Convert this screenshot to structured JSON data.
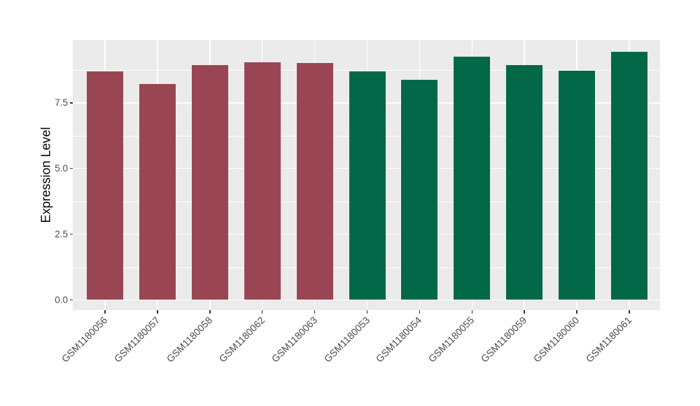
{
  "chart_data": {
    "type": "bar",
    "title": "",
    "xlabel": "",
    "ylabel": "Expression Level",
    "categories": [
      "GSM1180056",
      "GSM1180057",
      "GSM1180058",
      "GSM1180062",
      "GSM1180063",
      "GSM1180053",
      "GSM1180054",
      "GSM1180055",
      "GSM1180059",
      "GSM1180060",
      "GSM1180061"
    ],
    "values": [
      8.7,
      8.22,
      8.93,
      9.04,
      9.01,
      8.68,
      8.38,
      9.25,
      8.94,
      8.73,
      9.45
    ],
    "bar_colors": [
      "#9A4553",
      "#9A4553",
      "#9A4553",
      "#9A4553",
      "#9A4553",
      "#026847",
      "#026847",
      "#026847",
      "#026847",
      "#026847",
      "#026847"
    ],
    "color_groups": [
      {
        "color": "#9A4553",
        "categories": [
          "GSM1180056",
          "GSM1180057",
          "GSM1180058",
          "GSM1180062",
          "GSM1180063"
        ]
      },
      {
        "color": "#026847",
        "categories": [
          "GSM1180053",
          "GSM1180054",
          "GSM1180055",
          "GSM1180059",
          "GSM1180060",
          "GSM1180061"
        ]
      }
    ],
    "ytick_labels": [
      "0.0",
      "2.5",
      "5.0",
      "7.5"
    ],
    "ytick_values": [
      0,
      2.5,
      5,
      7.5
    ],
    "minor_ytick_values": [
      1.25,
      3.75,
      6.25,
      8.75
    ],
    "ylim": [
      -0.41,
      9.9
    ],
    "grid": "horizontal major+minor, vertical major at each category",
    "legend": false,
    "x_label_rotation_deg": 45,
    "style": {
      "figure_background": "#FFFFFF",
      "panel_background": "#EBEBEB",
      "gridline_color": "#FFFFFF",
      "axis_text_color": "#4D4D4D",
      "axis_title_color": "#000000",
      "tick_mark_color": "#333333"
    }
  }
}
